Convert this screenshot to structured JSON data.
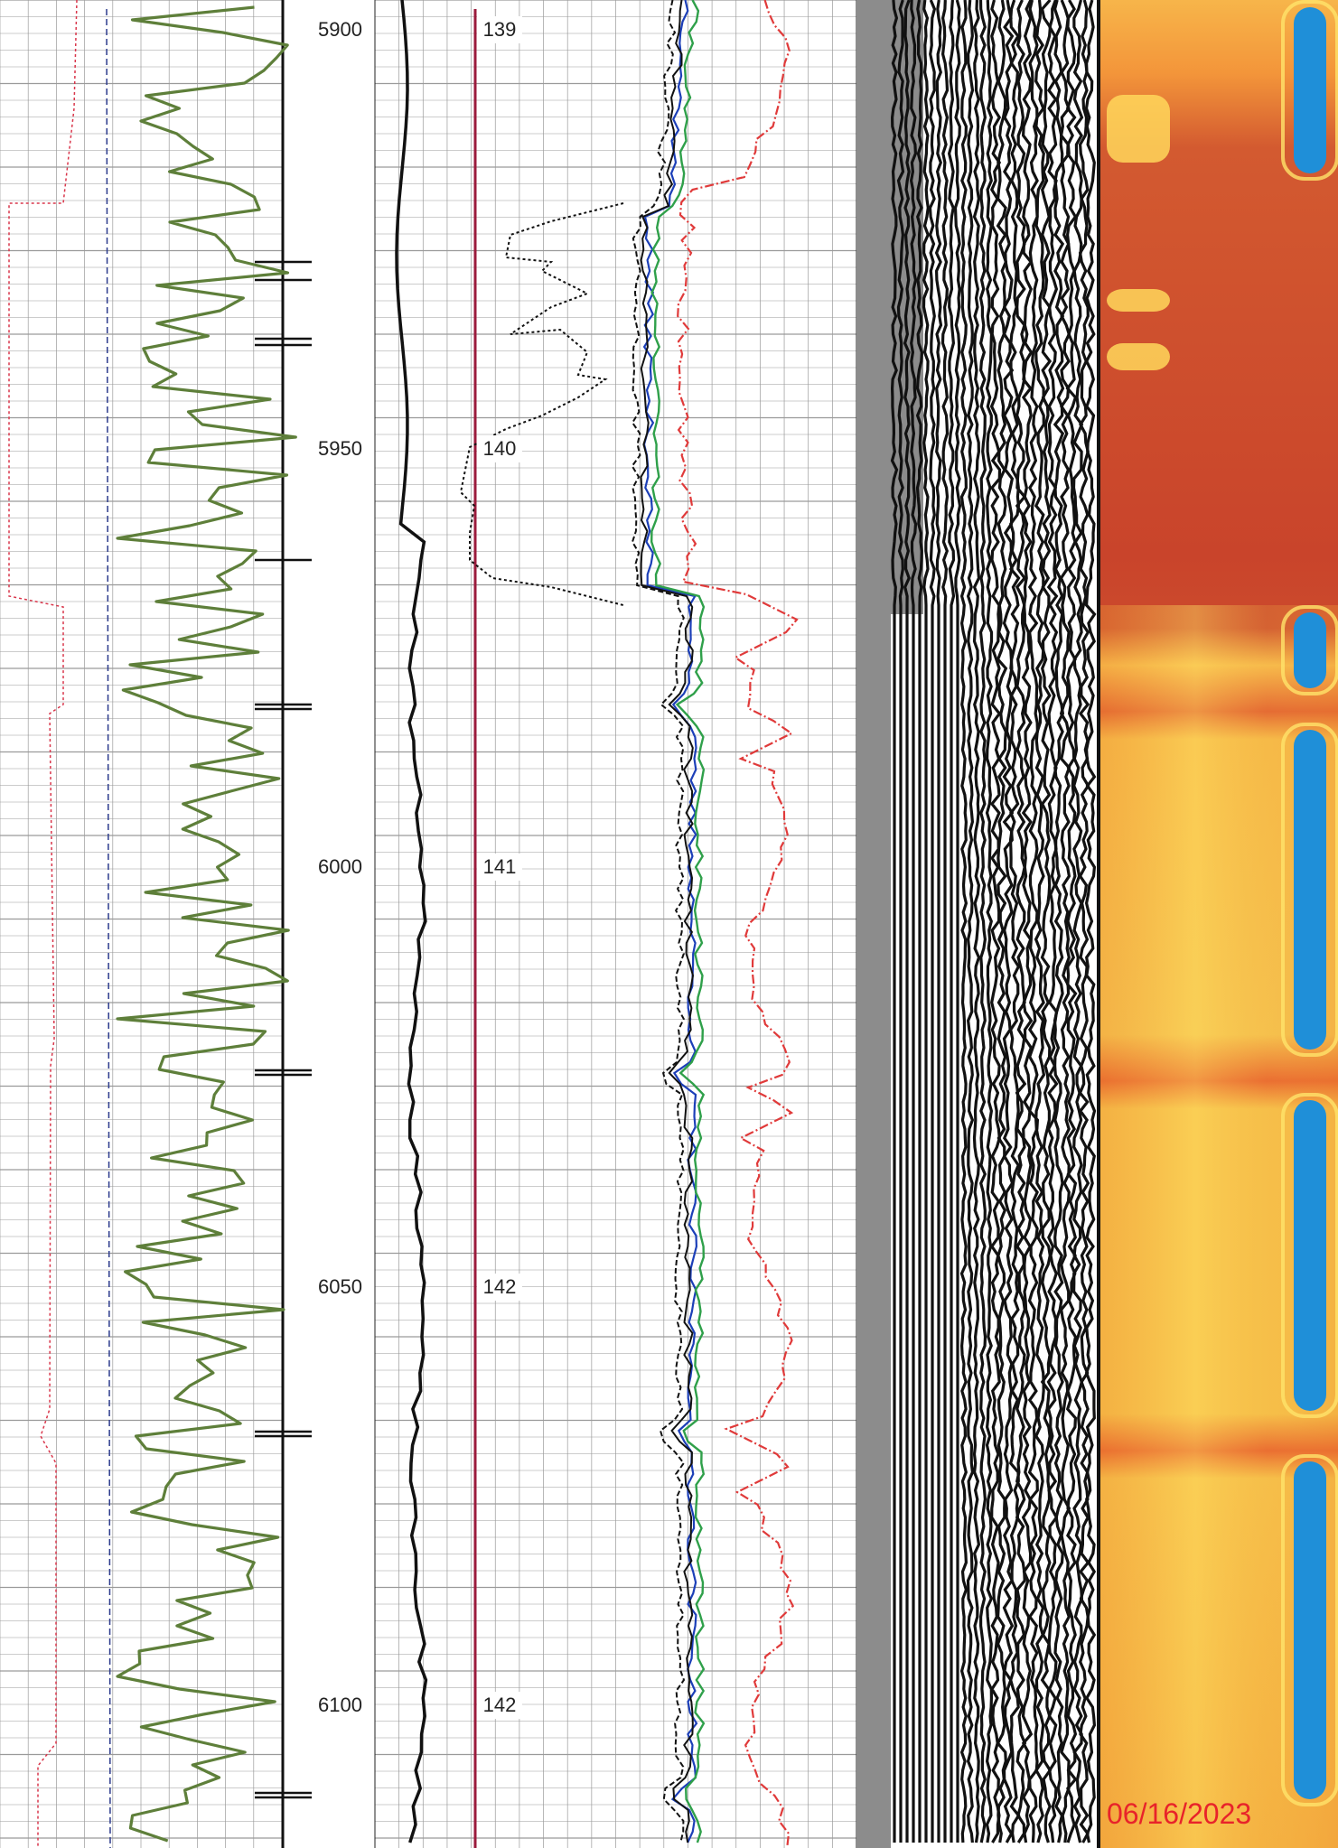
{
  "depth_track": {
    "labels": [
      "5900",
      "5950",
      "6000",
      "6050",
      "6100"
    ],
    "label_color": "#222222"
  },
  "temperature_track": {
    "labels": [
      "139",
      "140",
      "141",
      "142",
      "142"
    ],
    "line_color": "#9b1b3c"
  },
  "curve_colors": {
    "gamma_ray": "#5e7f3a",
    "red_dotted": "#d9364b",
    "blue_dashed": "#2b3a8c",
    "caliper": "#111111",
    "porosity_black_dotted": "#111111",
    "resistivity_red_dashdot": "#e03a3a",
    "resistivity_blue": "#1c3fb8",
    "resistivity_green": "#2fa04a",
    "grid_line": "#9a9a9a"
  },
  "seismic_panel": {
    "icon": "variable-density-waveform",
    "gray_band": "#8c8c8c"
  },
  "heatmap_panel": {
    "icon": "thermal-image-map",
    "colors": {
      "hot": "#c94a2c",
      "mid": "#f3a437",
      "cool": "#ffd75a",
      "blue": "#1f8fd8"
    }
  },
  "date_stamp": {
    "text": "06/16/2023",
    "color": "#e8232a"
  }
}
